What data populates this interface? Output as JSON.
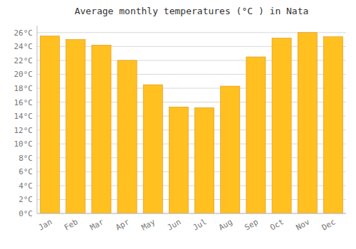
{
  "chart_data": {
    "type": "bar",
    "title": "Average monthly temperatures (°C ) in Nata",
    "categories": [
      "Jan",
      "Feb",
      "Mar",
      "Apr",
      "May",
      "Jun",
      "Jul",
      "Aug",
      "Sep",
      "Oct",
      "Nov",
      "Dec"
    ],
    "values": [
      25.5,
      25.0,
      24.2,
      22.0,
      18.5,
      15.3,
      15.2,
      18.3,
      22.5,
      25.2,
      26.0,
      25.4
    ],
    "color": "#FFC020",
    "ylim": [
      0,
      27
    ],
    "yticks": [
      {
        "value": 0,
        "label": "0°C"
      },
      {
        "value": 2,
        "label": "2°C"
      },
      {
        "value": 4,
        "label": "4°C"
      },
      {
        "value": 6,
        "label": "6°C"
      },
      {
        "value": 8,
        "label": "8°C"
      },
      {
        "value": 10,
        "label": "10°C"
      },
      {
        "value": 12,
        "label": "12°C"
      },
      {
        "value": 14,
        "label": "14°C"
      },
      {
        "value": 16,
        "label": "16°C"
      },
      {
        "value": 18,
        "label": "18°C"
      },
      {
        "value": 20,
        "label": "20°C"
      },
      {
        "value": 22,
        "label": "22°C"
      },
      {
        "value": 24,
        "label": "24°C"
      },
      {
        "value": 26,
        "label": "26°C"
      }
    ],
    "grid": true
  }
}
